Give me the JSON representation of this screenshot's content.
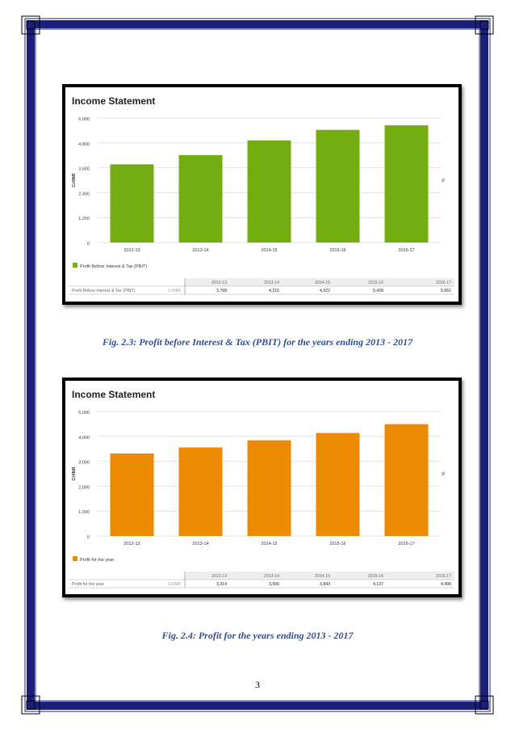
{
  "page_number": "3",
  "colors": {
    "border_navy": "#1a1f7a",
    "caption": "#2f4f8f"
  },
  "figures": [
    {
      "caption": "Fig. 2.3: Profit before Interest & Tax (PBIT) for the years ending 2013 - 2017",
      "chart_data": {
        "type": "bar",
        "title": "Income Statement",
        "categories": [
          "2012-13",
          "2013-14",
          "2014-15",
          "2015-16",
          "2016-17"
        ],
        "series": [
          {
            "name": "Profit Before Interest & Tax (PBIT)",
            "values": [
              3768,
              4215,
              4922,
              5428,
              5651
            ]
          }
        ],
        "ylabel": "Cr/INR",
        "y2label": "%",
        "ylim": [
          0,
          6000
        ],
        "yticks": [
          "0",
          "1,200",
          "2,400",
          "3,600",
          "4,800",
          "6,000"
        ],
        "grid": true,
        "legend": "bottom-left",
        "color": "#74ad10",
        "table": {
          "row_label": "Profit Before Interest & Tax (PBIT)",
          "unit": "Cr/INR",
          "values": [
            "3,768",
            "4,215",
            "4,922",
            "5,428",
            "5,651"
          ]
        }
      }
    },
    {
      "caption": "Fig. 2.4: Profit for the years ending 2013 - 2017",
      "chart_data": {
        "type": "bar",
        "title": "Income Statement",
        "categories": [
          "2012-13",
          "2013-14",
          "2014-15",
          "2015-16",
          "2016-17"
        ],
        "series": [
          {
            "name": "Profit for the year",
            "values": [
              3314,
              3556,
              3843,
              4137,
              4490
            ]
          }
        ],
        "ylabel": "Cr/INR",
        "y2label": "%",
        "ylim": [
          0,
          5000
        ],
        "yticks": [
          "0",
          "1,000",
          "2,000",
          "3,000",
          "4,000",
          "5,000"
        ],
        "grid": true,
        "legend": "bottom-left",
        "color": "#ec8a00",
        "table": {
          "row_label": "Profit for the year",
          "unit": "Cr/INR",
          "values": [
            "3,314",
            "3,556",
            "3,843",
            "4,137",
            "4,490"
          ]
        }
      }
    }
  ]
}
